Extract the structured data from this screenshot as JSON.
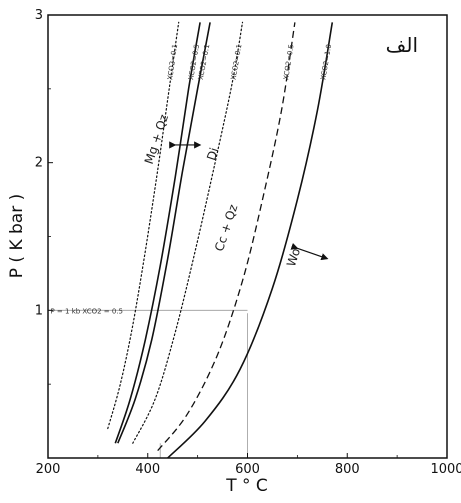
{
  "panel_label": "الف",
  "chart_data": {
    "type": "line",
    "title": "",
    "xlabel": "T ° C",
    "ylabel": "P ( K bar )",
    "xlim": [
      200,
      1000
    ],
    "ylim": [
      0,
      3
    ],
    "x_ticks": [
      200,
      400,
      600,
      800,
      1000
    ],
    "y_ticks": [
      1,
      2,
      3
    ],
    "grid": false,
    "series": [
      {
        "name": "XCO2=0.1",
        "style": "dotted",
        "points": [
          [
            320,
            0.2
          ],
          [
            345,
            0.5
          ],
          [
            370,
            0.9
          ],
          [
            395,
            1.4
          ],
          [
            420,
            1.95
          ],
          [
            443,
            2.5
          ],
          [
            462,
            2.95
          ]
        ]
      },
      {
        "name": "XCO2=0.5",
        "style": "solid",
        "points": [
          [
            335,
            0.1
          ],
          [
            365,
            0.4
          ],
          [
            395,
            0.8
          ],
          [
            425,
            1.3
          ],
          [
            455,
            1.9
          ],
          [
            482,
            2.5
          ],
          [
            505,
            2.95
          ]
        ]
      },
      {
        "name": "XCO2=0.1",
        "style": "solid",
        "points": [
          [
            340,
            0.1
          ],
          [
            375,
            0.4
          ],
          [
            408,
            0.8
          ],
          [
            440,
            1.35
          ],
          [
            470,
            1.95
          ],
          [
            500,
            2.5
          ],
          [
            525,
            2.95
          ]
        ]
      },
      {
        "name": "XCO2=0.1",
        "style": "dotted",
        "points": [
          [
            370,
            0.1
          ],
          [
            415,
            0.4
          ],
          [
            455,
            0.85
          ],
          [
            495,
            1.4
          ],
          [
            535,
            2.0
          ],
          [
            570,
            2.55
          ],
          [
            590,
            2.95
          ]
        ]
      },
      {
        "name": "XCO2=0.5",
        "style": "dashed",
        "points": [
          [
            420,
            0.05
          ],
          [
            480,
            0.3
          ],
          [
            540,
            0.7
          ],
          [
            590,
            1.2
          ],
          [
            630,
            1.75
          ],
          [
            668,
            2.35
          ],
          [
            695,
            2.95
          ]
        ]
      },
      {
        "name": "XCO2=1.0",
        "style": "solid",
        "points": [
          [
            440,
            0.0
          ],
          [
            515,
            0.25
          ],
          [
            585,
            0.6
          ],
          [
            650,
            1.15
          ],
          [
            700,
            1.75
          ],
          [
            740,
            2.35
          ],
          [
            770,
            2.95
          ]
        ]
      }
    ],
    "annotations": [
      {
        "text": "Mg + Qz",
        "x": 425,
        "y": 2.15
      },
      {
        "text": "Di",
        "x": 538,
        "y": 2.05
      },
      {
        "text": "Cc + Qz",
        "x": 565,
        "y": 1.55
      },
      {
        "text": "Wo",
        "x": 700,
        "y": 1.35
      },
      {
        "text": "P = 1 kb XCO2 = 0.5",
        "x": 205,
        "y": 0.98
      }
    ],
    "reference_lines": [
      {
        "orientation": "horizontal",
        "y": 1.0,
        "x_from": 200,
        "x_to": 600
      },
      {
        "orientation": "vertical",
        "x": 425,
        "y_from": 0,
        "y_to": 0.1
      },
      {
        "orientation": "vertical",
        "x": 600,
        "y_from": 0,
        "y_to": 0.98
      }
    ]
  }
}
